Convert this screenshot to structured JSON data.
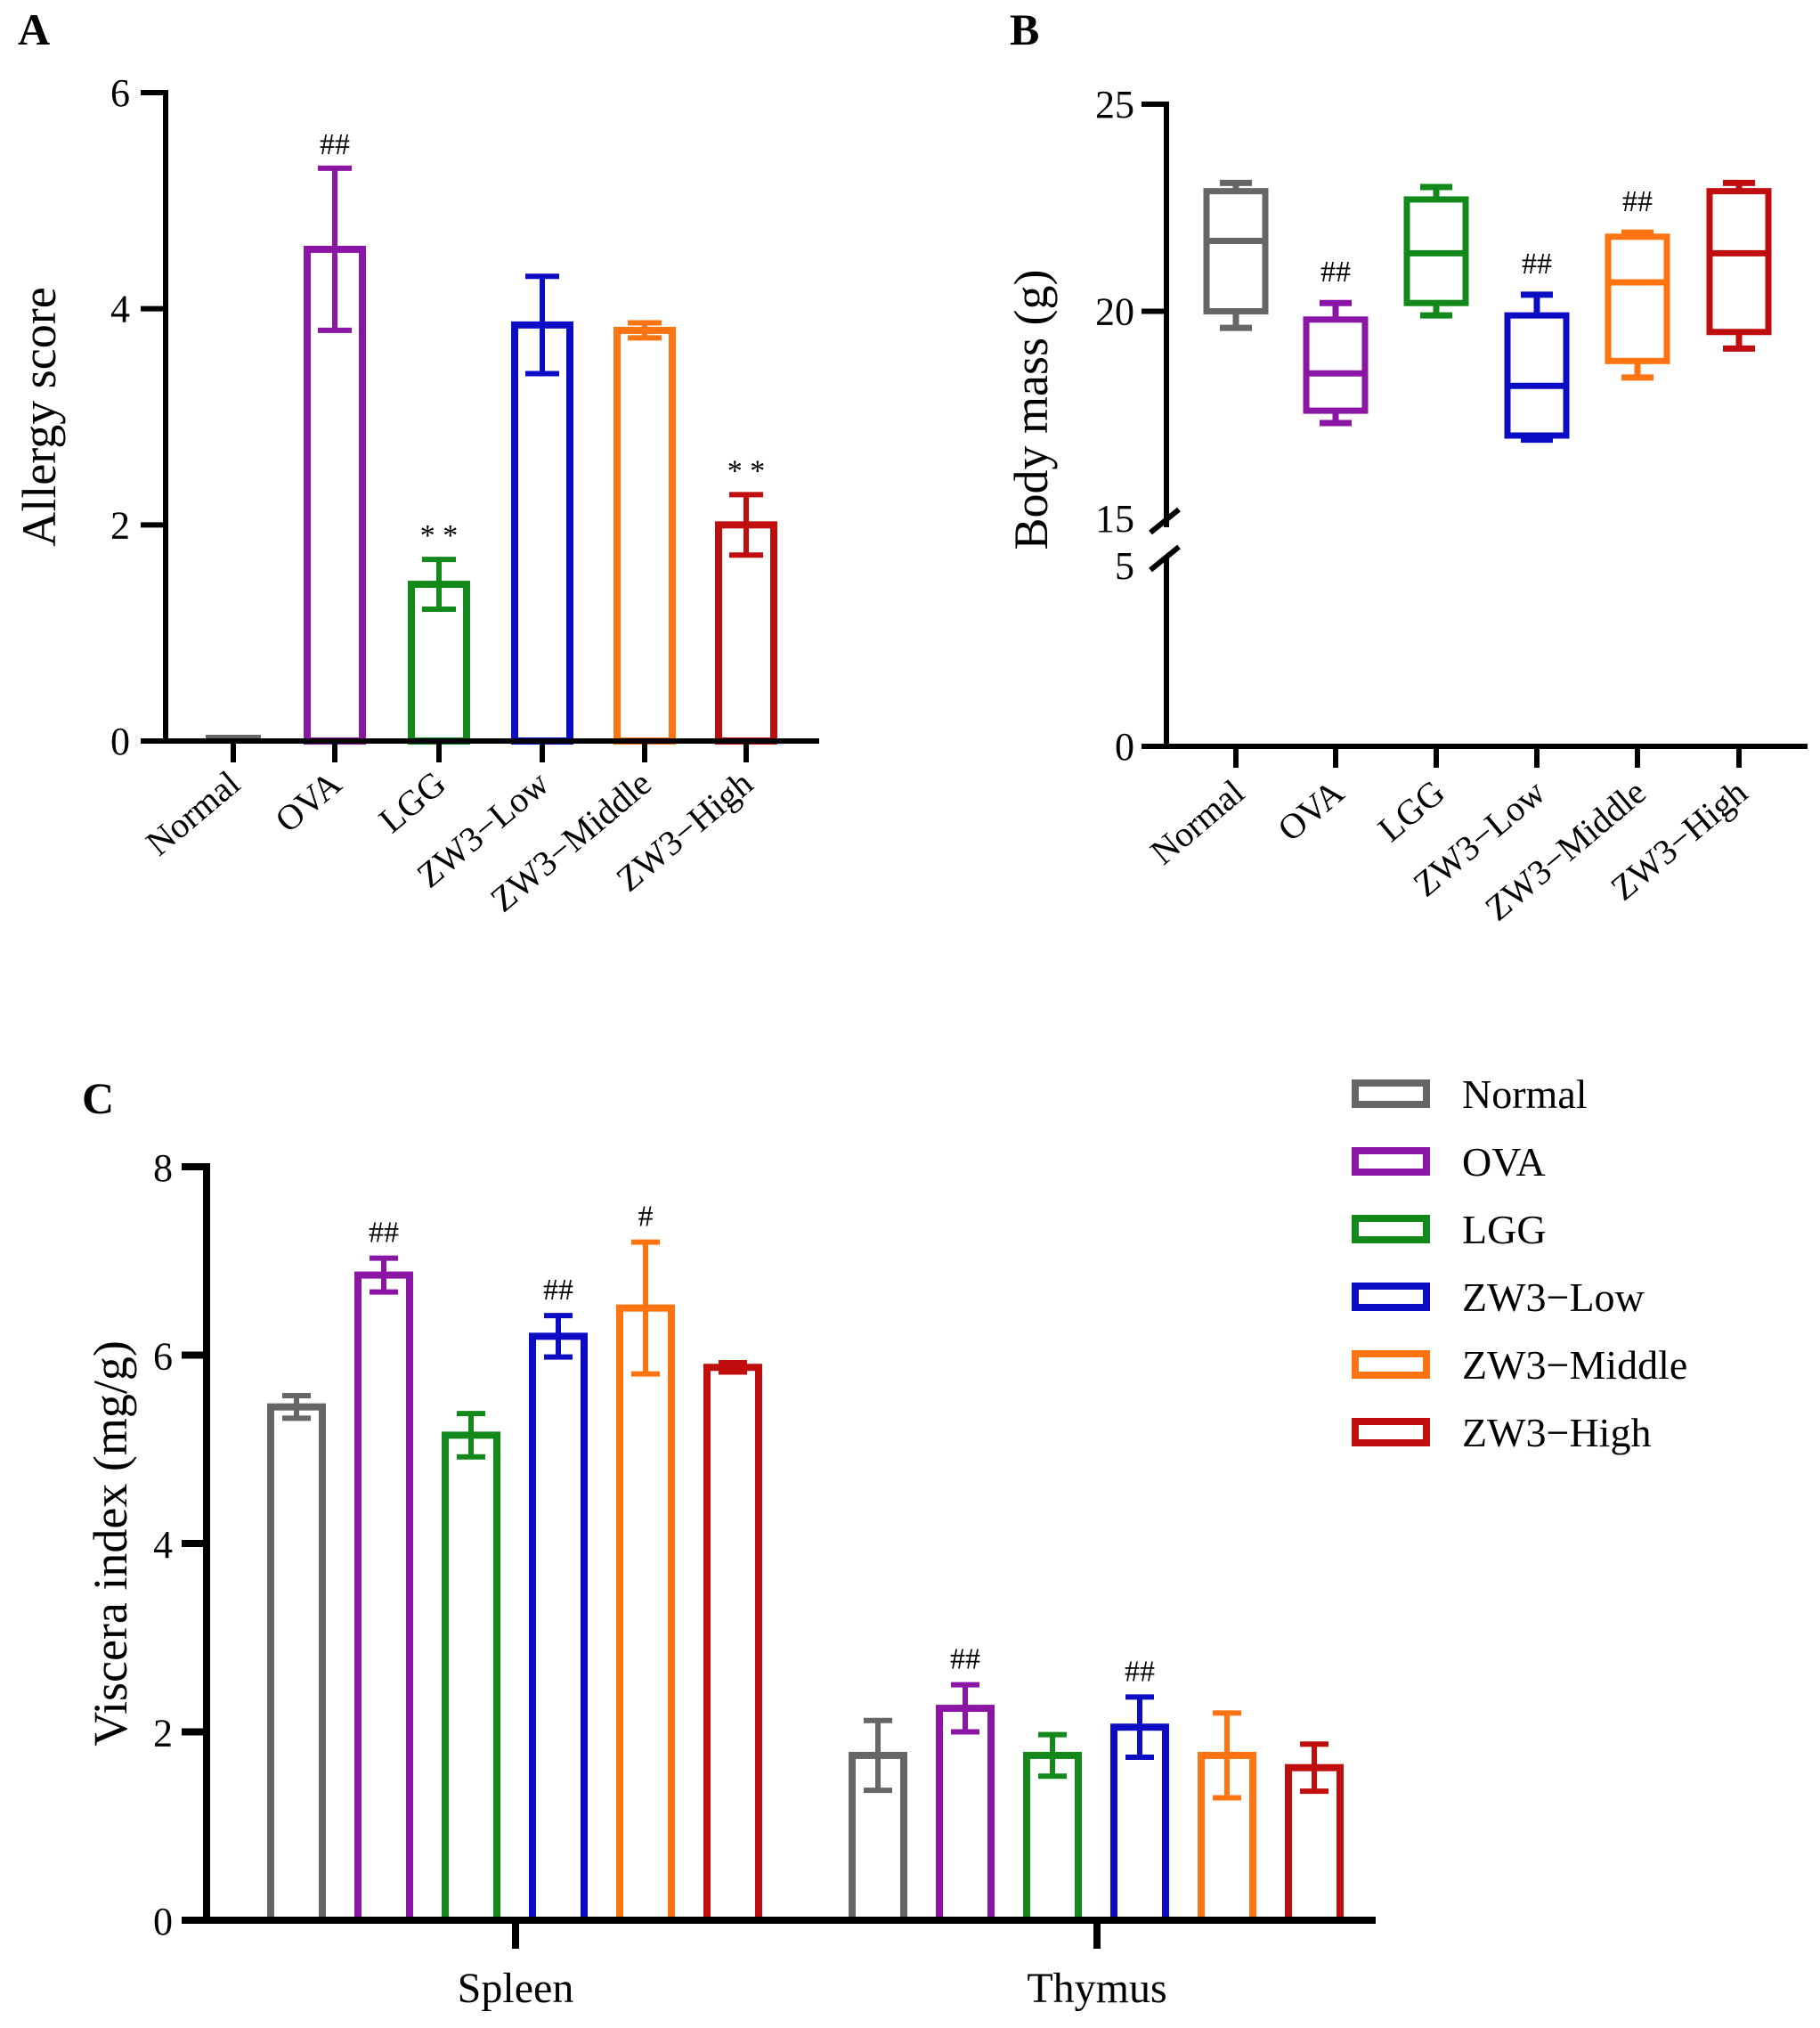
{
  "colors": {
    "Normal": "#666666",
    "OVA": "#8B16A6",
    "LGG": "#12891A",
    "ZW3-Low": "#0C0CC4",
    "ZW3-Middle": "#FF7310",
    "ZW3-High": "#C00E0E"
  },
  "chart_data": [
    {
      "panel": "A",
      "type": "bar",
      "title": "",
      "xlabel": "",
      "ylabel": "Allergy score",
      "ylim": [
        0,
        6
      ],
      "yticks": [
        "0",
        "2",
        "4",
        "6"
      ],
      "categories": [
        "Normal",
        "OVA",
        "LGG",
        "ZW3−Low",
        "ZW3−Middle",
        "ZW3−High"
      ],
      "color_keys": [
        "Normal",
        "OVA",
        "LGG",
        "ZW3-Low",
        "ZW3-Middle",
        "ZW3-High"
      ],
      "values": [
        0.0,
        4.55,
        1.45,
        3.85,
        3.8,
        2.0
      ],
      "errors": [
        0.0,
        0.75,
        0.23,
        0.45,
        0.07,
        0.28
      ],
      "annotations": [
        "",
        "##",
        "* *",
        "",
        "",
        "* *"
      ]
    },
    {
      "panel": "B",
      "type": "box",
      "title": "",
      "xlabel": "",
      "ylabel": "Body mass (g)",
      "axis_break": [
        5,
        15
      ],
      "ylim": [
        0,
        25
      ],
      "yticks": [
        "0",
        "5",
        "15",
        "20",
        "25"
      ],
      "categories": [
        "Normal",
        "OVA",
        "LGG",
        "ZW3−Low",
        "ZW3−Middle",
        "ZW3−High"
      ],
      "color_keys": [
        "Normal",
        "OVA",
        "LGG",
        "ZW3-Low",
        "ZW3-Middle",
        "ZW3-High"
      ],
      "boxes": [
        {
          "min": 19.6,
          "q1": 20.0,
          "median": 21.7,
          "q3": 22.9,
          "max": 23.1
        },
        {
          "min": 17.3,
          "q1": 17.6,
          "median": 18.5,
          "q3": 19.8,
          "max": 20.2
        },
        {
          "min": 19.9,
          "q1": 20.2,
          "median": 21.4,
          "q3": 22.7,
          "max": 23.0
        },
        {
          "min": 16.9,
          "q1": 17.0,
          "median": 18.2,
          "q3": 19.9,
          "max": 20.4
        },
        {
          "min": 18.4,
          "q1": 18.8,
          "median": 20.7,
          "q3": 21.8,
          "max": 21.9
        },
        {
          "min": 19.1,
          "q1": 19.5,
          "median": 21.4,
          "q3": 22.9,
          "max": 23.1
        }
      ],
      "annotations": [
        "",
        "##",
        "",
        "##",
        "##",
        ""
      ]
    },
    {
      "panel": "C",
      "type": "bar",
      "title": "",
      "xlabel": "",
      "ylabel": "Viscera index (mg/g)",
      "ylim": [
        0,
        8
      ],
      "yticks": [
        "0",
        "2",
        "4",
        "6",
        "8"
      ],
      "groups": [
        "Spleen",
        "Thymus"
      ],
      "series": [
        {
          "name": "Normal",
          "color_key": "Normal",
          "values": [
            5.45,
            1.75
          ],
          "errors": [
            0.12,
            0.37
          ]
        },
        {
          "name": "OVA",
          "color_key": "OVA",
          "values": [
            6.85,
            2.25
          ],
          "errors": [
            0.18,
            0.25
          ]
        },
        {
          "name": "LGG",
          "color_key": "LGG",
          "values": [
            5.15,
            1.75
          ],
          "errors": [
            0.23,
            0.22
          ]
        },
        {
          "name": "ZW3−Low",
          "color_key": "ZW3-Low",
          "values": [
            6.2,
            2.05
          ],
          "errors": [
            0.22,
            0.32
          ]
        },
        {
          "name": "ZW3−Middle",
          "color_key": "ZW3-Middle",
          "values": [
            6.5,
            1.75
          ],
          "errors": [
            0.7,
            0.45
          ]
        },
        {
          "name": "ZW3−High",
          "color_key": "ZW3-High",
          "values": [
            5.87,
            1.62
          ],
          "errors": [
            0.05,
            0.25
          ]
        }
      ],
      "annotations": [
        [
          "",
          "##",
          "",
          "##",
          "#",
          ""
        ],
        [
          "",
          "##",
          "",
          "##",
          "",
          ""
        ]
      ],
      "legend": [
        "Normal",
        "OVA",
        "LGG",
        "ZW3−Low",
        "ZW3−Middle",
        "ZW3−High"
      ],
      "legend_position": "top-right"
    }
  ]
}
